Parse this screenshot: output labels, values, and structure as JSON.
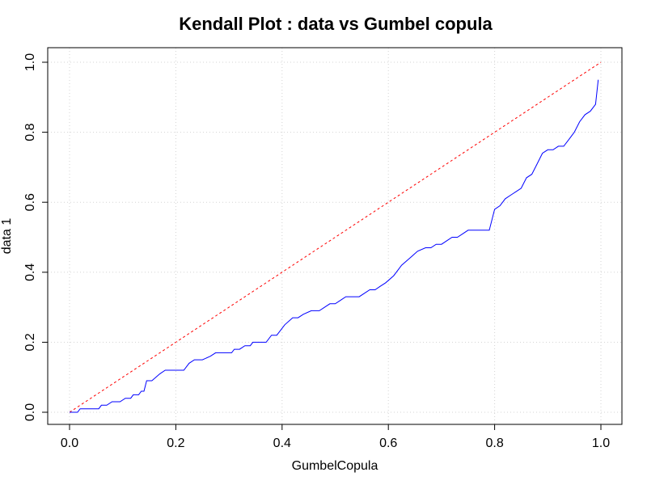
{
  "chart_data": {
    "type": "line",
    "title": "Kendall Plot : data vs Gumbel copula",
    "xlabel": "GumbelCopula",
    "ylabel": "data 1",
    "xlim": [
      0,
      1
    ],
    "ylim": [
      0,
      1
    ],
    "grid": true,
    "x_ticks": [
      0,
      0.2,
      0.4,
      0.6,
      0.8,
      1
    ],
    "y_ticks": [
      0,
      0.2,
      0.4,
      0.6,
      0.8,
      1
    ],
    "x_tick_labels": [
      "0.0",
      "0.2",
      "0.4",
      "0.6",
      "0.8",
      "1.0"
    ],
    "y_tick_labels": [
      "0.0",
      "0.2",
      "0.4",
      "0.6",
      "0.8",
      "1.0"
    ],
    "colors": {
      "series": "#0000ff",
      "reference": "#ff0000",
      "grid": "#d3d3d3",
      "axes": "#000000"
    },
    "reference_line": {
      "x": [
        0,
        1
      ],
      "y": [
        0,
        1
      ],
      "style": "dashed"
    },
    "series": [
      {
        "x": [
          0,
          0.015,
          0.02,
          0.03,
          0.055,
          0.06,
          0.07,
          0.08,
          0.095,
          0.105,
          0.115,
          0.12,
          0.13,
          0.135,
          0.14,
          0.145,
          0.155,
          0.17,
          0.18,
          0.19,
          0.21,
          0.215,
          0.225,
          0.235,
          0.25,
          0.265,
          0.275,
          0.29,
          0.305,
          0.31,
          0.32,
          0.33,
          0.34,
          0.345,
          0.36,
          0.37,
          0.38,
          0.39,
          0.395,
          0.405,
          0.42,
          0.43,
          0.44,
          0.455,
          0.46,
          0.47,
          0.48,
          0.49,
          0.5,
          0.51,
          0.52,
          0.535,
          0.545,
          0.555,
          0.565,
          0.575,
          0.585,
          0.595,
          0.61,
          0.625,
          0.64,
          0.655,
          0.67,
          0.68,
          0.69,
          0.7,
          0.71,
          0.72,
          0.73,
          0.74,
          0.75,
          0.76,
          0.77,
          0.78,
          0.79,
          0.8,
          0.81,
          0.82,
          0.83,
          0.84,
          0.85,
          0.86,
          0.87,
          0.88,
          0.89,
          0.9,
          0.91,
          0.92,
          0.93,
          0.94,
          0.95,
          0.96,
          0.97,
          0.98,
          0.99,
          0.995
        ],
        "y": [
          0,
          0,
          0.01,
          0.01,
          0.01,
          0.02,
          0.02,
          0.03,
          0.03,
          0.04,
          0.04,
          0.05,
          0.05,
          0.06,
          0.06,
          0.09,
          0.09,
          0.11,
          0.12,
          0.12,
          0.12,
          0.12,
          0.14,
          0.15,
          0.15,
          0.16,
          0.17,
          0.17,
          0.17,
          0.18,
          0.18,
          0.19,
          0.19,
          0.2,
          0.2,
          0.2,
          0.22,
          0.22,
          0.23,
          0.25,
          0.27,
          0.27,
          0.28,
          0.29,
          0.29,
          0.29,
          0.3,
          0.31,
          0.31,
          0.32,
          0.33,
          0.33,
          0.33,
          0.34,
          0.35,
          0.35,
          0.36,
          0.37,
          0.39,
          0.42,
          0.44,
          0.46,
          0.47,
          0.47,
          0.48,
          0.48,
          0.49,
          0.5,
          0.5,
          0.51,
          0.52,
          0.52,
          0.52,
          0.52,
          0.52,
          0.58,
          0.59,
          0.61,
          0.62,
          0.63,
          0.64,
          0.67,
          0.68,
          0.71,
          0.74,
          0.75,
          0.75,
          0.76,
          0.76,
          0.78,
          0.8,
          0.83,
          0.85,
          0.86,
          0.88,
          0.95
        ]
      }
    ]
  }
}
